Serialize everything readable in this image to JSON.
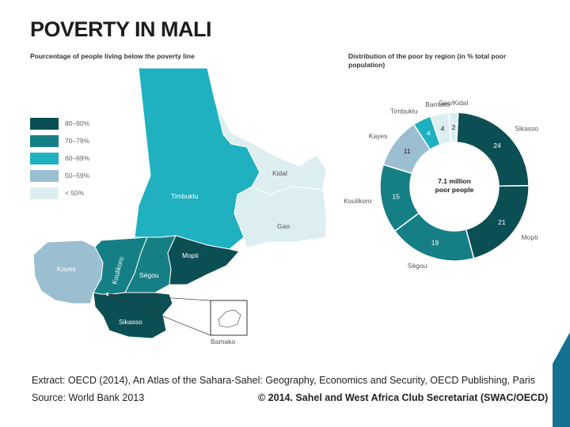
{
  "title": "POVERTY IN MALI",
  "map_subtitle": "Pourcentage of people living below the poverty line",
  "chart_subtitle": "Distribution of the poor by region (in % total poor population)",
  "legend": [
    {
      "label": "80–90%",
      "color": "#0b4f55"
    },
    {
      "label": "70–79%",
      "color": "#167f86"
    },
    {
      "label": "60–69%",
      "color": "#1fb1c0"
    },
    {
      "label": "50–59%",
      "color": "#9bbfd1"
    },
    {
      "label": "< 50%",
      "color": "#ddeef1"
    }
  ],
  "regions": {
    "timbuktu": "Timbuktu",
    "kidal": "Kidal",
    "gao": "Gao",
    "kayes": "Kayes",
    "koulikoro": "Koulikoro",
    "segou": "Ségou",
    "mopti": "Mopti",
    "sikasso": "Sikasso",
    "bamako": "Bamako"
  },
  "center_label": {
    "line1": "7.1 million",
    "line2": "poor people"
  },
  "chart_data": {
    "type": "pie",
    "title": "Distribution of the poor by region (in % total poor population)",
    "center_text": "7.1 million poor people",
    "slices": [
      {
        "label": "Sikasso",
        "value": 24,
        "color": "#0b4f55"
      },
      {
        "label": "Mopti",
        "value": 21,
        "color": "#0b4f55"
      },
      {
        "label": "Ségou",
        "value": 19,
        "color": "#167f86"
      },
      {
        "label": "Koulikoro",
        "value": 15,
        "color": "#167f86"
      },
      {
        "label": "Kayes",
        "value": 11,
        "color": "#9bbfd1"
      },
      {
        "label": "Timbuktu",
        "value": 4,
        "color": "#1fb1c0"
      },
      {
        "label": "Bamako",
        "value": 4,
        "color": "#ddeef1"
      },
      {
        "label": "Gao/Kidal",
        "value": 2,
        "color": "#ddeef1"
      }
    ]
  },
  "footer": {
    "extract": "Extract: OECD (2014), An Atlas of the Sahara-Sahel: Geography, Economics  and Security, OECD Publishing, Paris",
    "source": "Source: World Bank 2013",
    "copyright": "© 2014. Sahel and West Africa Club Secretariat (SWAC/OECD)"
  },
  "colors": {
    "corner_accent": "#14708f"
  }
}
